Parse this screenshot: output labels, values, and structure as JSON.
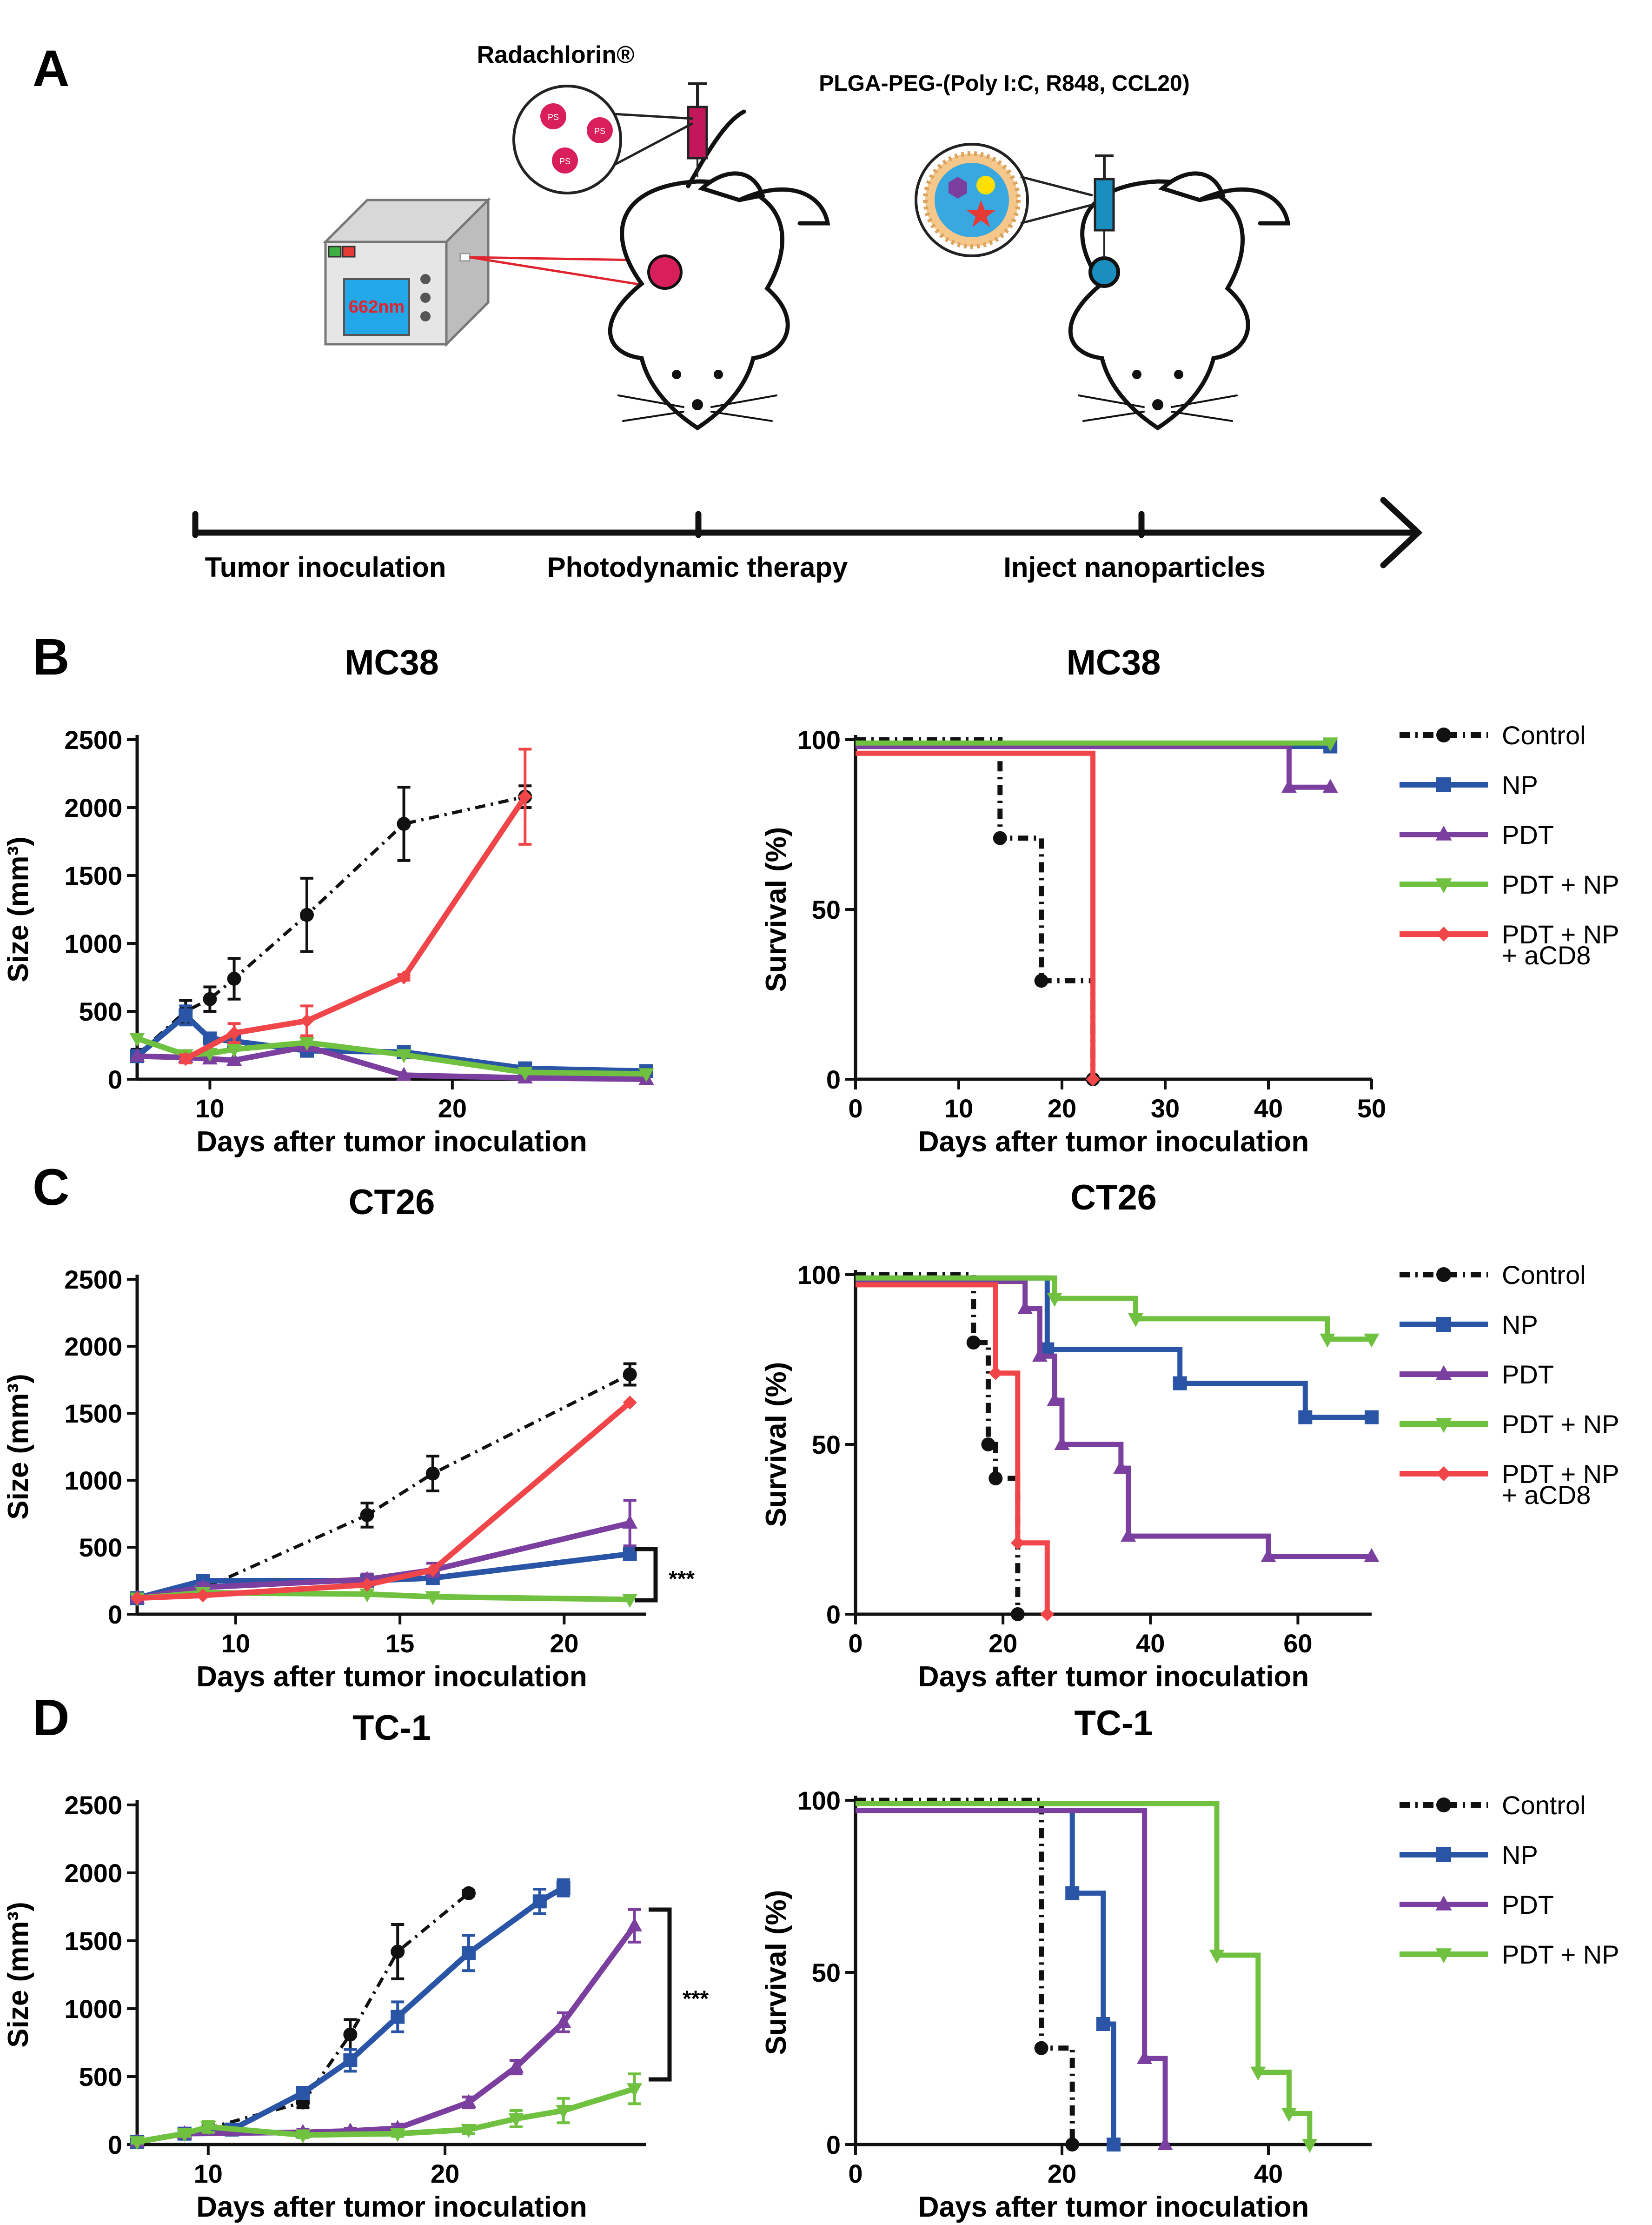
{
  "panel_letters": {
    "a": "A",
    "b": "B",
    "c": "C",
    "d": "D"
  },
  "schematic": {
    "photosensitizer": "Radachlorin®",
    "ps_label": "PS",
    "nanoparticle": "PLGA-PEG-(Poly I:C, R848, CCL20)",
    "laser": "662nm",
    "timeline": [
      "Tumor inoculation",
      "Photodynamic therapy",
      "Inject nanoparticles"
    ]
  },
  "colors": {
    "Control": "#111111",
    "NP": "#2a55a6",
    "PDT": "#7b3fa0",
    "PDT + NP": "#6fc13f",
    "PDT + NP + aCD8": "#f0464a"
  },
  "chart_data": [
    {
      "id": "mc38_size",
      "type": "line",
      "title": "MC38",
      "xlabel": "Days after tumor inoculation",
      "ylabel": "Size (mm³)",
      "xlim": [
        7,
        28
      ],
      "ylim": [
        0,
        2500
      ],
      "xticks": [
        10,
        20
      ],
      "yticks": [
        0,
        500,
        1000,
        1500,
        2000,
        2500
      ],
      "series": [
        {
          "name": "Control",
          "x": [
            7,
            9,
            10,
            11,
            14,
            18,
            23
          ],
          "y": [
            180,
            500,
            590,
            740,
            1210,
            1880,
            2080
          ],
          "err": [
            40,
            80,
            90,
            150,
            270,
            270,
            80
          ]
        },
        {
          "name": "NP",
          "x": [
            7,
            9,
            10,
            11,
            14,
            18,
            23,
            28
          ],
          "y": [
            170,
            470,
            300,
            280,
            210,
            200,
            80,
            60
          ],
          "err": [
            30,
            70,
            40,
            40,
            40,
            30,
            20,
            15
          ]
        },
        {
          "name": "PDT",
          "x": [
            7,
            9,
            10,
            11,
            14,
            18,
            23,
            28
          ],
          "y": [
            170,
            160,
            150,
            140,
            240,
            30,
            10,
            0
          ]
        },
        {
          "name": "PDT + NP",
          "x": [
            7,
            9,
            10,
            11,
            14,
            18,
            23,
            28
          ],
          "y": [
            300,
            180,
            190,
            220,
            270,
            180,
            50,
            40
          ]
        },
        {
          "name": "PDT + NP + aCD8",
          "x": [
            9,
            11,
            14,
            18,
            23
          ],
          "y": [
            150,
            340,
            430,
            750,
            2080
          ],
          "err": [
            30,
            70,
            110,
            20,
            350
          ]
        }
      ]
    },
    {
      "id": "mc38_surv",
      "type": "line",
      "subtype": "survival",
      "title": "MC38",
      "xlabel": "Days after tumor inoculation",
      "ylabel": "Survival (%)",
      "xlim": [
        0,
        50
      ],
      "ylim": [
        0,
        100
      ],
      "xticks": [
        0,
        10,
        20,
        30,
        40,
        50
      ],
      "yticks": [
        0,
        50,
        100
      ],
      "series": [
        {
          "name": "Control",
          "steps": [
            [
              0,
              100
            ],
            [
              14,
              71
            ],
            [
              18,
              29
            ],
            [
              23,
              0
            ]
          ]
        },
        {
          "name": "NP",
          "steps": [
            [
              0,
              98
            ],
            [
              46,
              98
            ]
          ]
        },
        {
          "name": "PDT",
          "steps": [
            [
              0,
              98
            ],
            [
              42,
              86
            ],
            [
              46,
              86
            ]
          ]
        },
        {
          "name": "PDT + NP",
          "steps": [
            [
              0,
              99
            ],
            [
              46,
              99
            ]
          ]
        },
        {
          "name": "PDT + NP + aCD8",
          "steps": [
            [
              0,
              96
            ],
            [
              23,
              0
            ]
          ]
        }
      ]
    },
    {
      "id": "ct26_size",
      "type": "line",
      "title": "CT26",
      "xlabel": "Days after tumor inoculation",
      "ylabel": "Size (mm³)",
      "xlim": [
        7,
        22.5
      ],
      "ylim": [
        0,
        2500
      ],
      "xticks": [
        10,
        15,
        20
      ],
      "yticks": [
        0,
        500,
        1000,
        1500,
        2000,
        2500
      ],
      "annotation": "***",
      "series": [
        {
          "name": "Control",
          "x": [
            7,
            9,
            14,
            16,
            22
          ],
          "y": [
            120,
            190,
            740,
            1050,
            1790
          ],
          "err": [
            30,
            30,
            90,
            130,
            80
          ]
        },
        {
          "name": "NP",
          "x": [
            7,
            9,
            14,
            16,
            22
          ],
          "y": [
            120,
            250,
            250,
            270,
            450
          ]
        },
        {
          "name": "PDT",
          "x": [
            7,
            9,
            14,
            16,
            22
          ],
          "y": [
            120,
            200,
            260,
            330,
            680
          ],
          "err": [
            20,
            30,
            40,
            50,
            170
          ]
        },
        {
          "name": "PDT + NP",
          "x": [
            7,
            9,
            14,
            16,
            22
          ],
          "y": [
            120,
            160,
            150,
            130,
            110
          ]
        },
        {
          "name": "PDT + NP + aCD8",
          "x": [
            7,
            9,
            14,
            16,
            22
          ],
          "y": [
            120,
            140,
            220,
            330,
            1580
          ]
        }
      ]
    },
    {
      "id": "ct26_surv",
      "type": "line",
      "subtype": "survival",
      "title": "CT26",
      "xlabel": "Days after tumor inoculation",
      "ylabel": "Survival (%)",
      "xlim": [
        0,
        70
      ],
      "ylim": [
        0,
        100
      ],
      "xticks": [
        0,
        20,
        40,
        60
      ],
      "yticks": [
        0,
        50,
        100
      ],
      "series": [
        {
          "name": "Control",
          "steps": [
            [
              0,
              100
            ],
            [
              16,
              80
            ],
            [
              18,
              50
            ],
            [
              19,
              40
            ],
            [
              22,
              0
            ]
          ]
        },
        {
          "name": "NP",
          "steps": [
            [
              0,
              99
            ],
            [
              26,
              78
            ],
            [
              44,
              68
            ],
            [
              61,
              58
            ],
            [
              70,
              58
            ]
          ]
        },
        {
          "name": "PDT",
          "steps": [
            [
              0,
              98
            ],
            [
              23,
              90
            ],
            [
              25,
              76
            ],
            [
              27,
              63
            ],
            [
              28,
              50
            ],
            [
              36,
              43
            ],
            [
              37,
              23
            ],
            [
              56,
              17
            ],
            [
              70,
              17
            ]
          ]
        },
        {
          "name": "PDT + NP",
          "steps": [
            [
              0,
              99
            ],
            [
              27,
              93
            ],
            [
              38,
              87
            ],
            [
              64,
              81
            ],
            [
              70,
              81
            ]
          ]
        },
        {
          "name": "PDT + NP + aCD8",
          "steps": [
            [
              0,
              97
            ],
            [
              19,
              71
            ],
            [
              22,
              21
            ],
            [
              26,
              0
            ]
          ]
        }
      ]
    },
    {
      "id": "tc1_size",
      "type": "line",
      "title": "TC-1",
      "xlabel": "Days after tumor inoculation",
      "ylabel": "Size (mm³)",
      "xlim": [
        7,
        28.5
      ],
      "ylim": [
        0,
        2500
      ],
      "xticks": [
        10,
        20
      ],
      "yticks": [
        0,
        500,
        1000,
        1500,
        2000,
        2500
      ],
      "annotation": "***",
      "series": [
        {
          "name": "Control",
          "x": [
            7,
            9,
            10,
            14,
            16,
            18,
            21
          ],
          "y": [
            20,
            80,
            120,
            310,
            810,
            1420,
            1850
          ],
          "err": [
            10,
            20,
            30,
            40,
            110,
            200,
            20
          ]
        },
        {
          "name": "NP",
          "x": [
            7,
            9,
            11,
            14,
            16,
            18,
            21,
            24,
            25
          ],
          "y": [
            20,
            80,
            110,
            380,
            620,
            940,
            1410,
            1790,
            1890
          ],
          "err": [
            10,
            20,
            20,
            40,
            80,
            110,
            130,
            90,
            60
          ]
        },
        {
          "name": "PDT",
          "x": [
            7,
            9,
            14,
            16,
            18,
            21,
            23,
            25,
            28
          ],
          "y": [
            20,
            80,
            90,
            100,
            120,
            310,
            570,
            900,
            1610
          ],
          "err": [
            10,
            20,
            20,
            20,
            30,
            40,
            50,
            70,
            120
          ]
        },
        {
          "name": "PDT + NP",
          "x": [
            7,
            9,
            10,
            14,
            18,
            21,
            23,
            25,
            28
          ],
          "y": [
            20,
            80,
            130,
            70,
            80,
            110,
            190,
            250,
            410
          ],
          "err": [
            10,
            20,
            40,
            20,
            20,
            30,
            60,
            90,
            110
          ]
        }
      ]
    },
    {
      "id": "tc1_surv",
      "type": "line",
      "subtype": "survival",
      "title": "TC-1",
      "xlabel": "Days after tumor inoculation",
      "ylabel": "Survival (%)",
      "xlim": [
        0,
        50
      ],
      "ylim": [
        0,
        100
      ],
      "xticks": [
        0,
        20,
        40
      ],
      "yticks": [
        0,
        50,
        100
      ],
      "series": [
        {
          "name": "Control",
          "steps": [
            [
              0,
              100
            ],
            [
              18,
              28
            ],
            [
              21,
              0
            ]
          ]
        },
        {
          "name": "NP",
          "steps": [
            [
              0,
              97
            ],
            [
              21,
              73
            ],
            [
              24,
              35
            ],
            [
              25,
              0
            ]
          ]
        },
        {
          "name": "PDT",
          "steps": [
            [
              0,
              97
            ],
            [
              28,
              25
            ],
            [
              30,
              0
            ]
          ]
        },
        {
          "name": "PDT + NP",
          "steps": [
            [
              0,
              99
            ],
            [
              35,
              55
            ],
            [
              39,
              21
            ],
            [
              42,
              9
            ],
            [
              44,
              0
            ]
          ]
        }
      ]
    }
  ],
  "legends": {
    "b": [
      "Control",
      "NP",
      "PDT",
      "PDT + NP",
      "PDT + NP",
      "+ aCD8"
    ],
    "c": [
      "Control",
      "NP",
      "PDT",
      "PDT + NP",
      "PDT + NP",
      "+ aCD8"
    ],
    "d": [
      "Control",
      "NP",
      "PDT",
      "PDT + NP"
    ]
  }
}
